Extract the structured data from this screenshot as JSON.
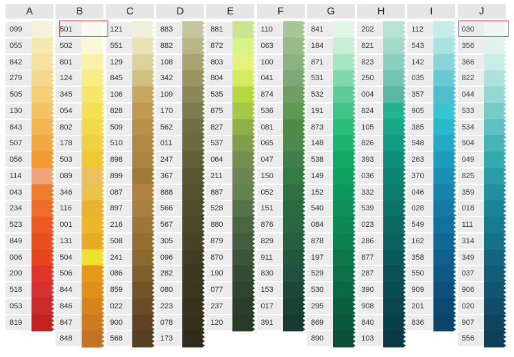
{
  "columns": [
    {
      "header": "A",
      "swatches": [
        {
          "code": "099",
          "color": "#f5f2dc"
        },
        {
          "code": "055",
          "color": "#f6eab0"
        },
        {
          "code": "842",
          "color": "#f6e1a0"
        },
        {
          "code": "279",
          "color": "#f5d88e"
        },
        {
          "code": "505",
          "color": "#f5cf78"
        },
        {
          "code": "130",
          "color": "#f4c264"
        },
        {
          "code": "843",
          "color": "#f3b451"
        },
        {
          "code": "507",
          "color": "#f2a842"
        },
        {
          "code": "056",
          "color": "#f19a30"
        },
        {
          "code": "114",
          "color": "#f0a47a"
        },
        {
          "code": "043",
          "color": "#ef7d2e"
        },
        {
          "code": "234",
          "color": "#ee6d28"
        },
        {
          "code": "523",
          "color": "#ec5c22"
        },
        {
          "code": "849",
          "color": "#e9501f"
        },
        {
          "code": "006",
          "color": "#e6451d"
        },
        {
          "code": "200",
          "color": "#e0362a"
        },
        {
          "code": "518",
          "color": "#d63030"
        },
        {
          "code": "053",
          "color": "#c92b2c"
        },
        {
          "code": "819",
          "color": "#c3231f"
        }
      ]
    },
    {
      "header": "B",
      "swatches": [
        {
          "code": "501",
          "color": "#fbfaf2"
        },
        {
          "code": "502",
          "color": "#fbf8d8"
        },
        {
          "code": "801",
          "color": "#faf2a8"
        },
        {
          "code": "124",
          "color": "#f8ec82"
        },
        {
          "code": "345",
          "color": "#f6e66c"
        },
        {
          "code": "054",
          "color": "#f4e052"
        },
        {
          "code": "802",
          "color": "#f2d94a"
        },
        {
          "code": "178",
          "color": "#f0d040"
        },
        {
          "code": "503",
          "color": "#efc832"
        },
        {
          "code": "089",
          "color": "#ecc05a"
        },
        {
          "code": "346",
          "color": "#ebc24a"
        },
        {
          "code": "116",
          "color": "#e9b330"
        },
        {
          "code": "001",
          "color": "#ebb82c"
        },
        {
          "code": "131",
          "color": "#e8ac22"
        },
        {
          "code": "504",
          "color": "#f0e030"
        },
        {
          "code": "506",
          "color": "#e59a16"
        },
        {
          "code": "844",
          "color": "#e08f18"
        },
        {
          "code": "846",
          "color": "#d8841e"
        },
        {
          "code": "847",
          "color": "#cf7a1f"
        },
        {
          "code": "848",
          "color": "#c47322"
        }
      ]
    },
    {
      "header": "C",
      "swatches": [
        {
          "code": "121",
          "color": "#f1efd9"
        },
        {
          "code": "551",
          "color": "#e8e2b6"
        },
        {
          "code": "129",
          "color": "#ddd29a"
        },
        {
          "code": "845",
          "color": "#d2c080"
        },
        {
          "code": "106",
          "color": "#c7a860"
        },
        {
          "code": "828",
          "color": "#c09a4e"
        },
        {
          "code": "509",
          "color": "#b89048"
        },
        {
          "code": "510",
          "color": "#b08a44"
        },
        {
          "code": "898",
          "color": "#aa8440"
        },
        {
          "code": "899",
          "color": "#a07a38"
        },
        {
          "code": "087",
          "color": "#b28240"
        },
        {
          "code": "897",
          "color": "#a88040"
        },
        {
          "code": "216",
          "color": "#9c7638"
        },
        {
          "code": "508",
          "color": "#947030"
        },
        {
          "code": "241",
          "color": "#8c6a2e"
        },
        {
          "code": "086",
          "color": "#7e5e2a"
        },
        {
          "code": "859",
          "color": "#725428"
        },
        {
          "code": "022",
          "color": "#6a4c26"
        },
        {
          "code": "900",
          "color": "#5e4424"
        },
        {
          "code": "568",
          "color": "#554022"
        }
      ]
    },
    {
      "header": "D",
      "swatches": [
        {
          "code": "883",
          "color": "#c7c59e"
        },
        {
          "code": "882",
          "color": "#b9b788"
        },
        {
          "code": "108",
          "color": "#a8a471"
        },
        {
          "code": "342",
          "color": "#9a9460"
        },
        {
          "code": "109",
          "color": "#8a8758"
        },
        {
          "code": "170",
          "color": "#7c7a4e"
        },
        {
          "code": "562",
          "color": "#706c44"
        },
        {
          "code": "011",
          "color": "#6a6a3e"
        },
        {
          "code": "247",
          "color": "#625e38"
        },
        {
          "code": "367",
          "color": "#585632"
        },
        {
          "code": "888",
          "color": "#54522e"
        },
        {
          "code": "566",
          "color": "#4e4c2c"
        },
        {
          "code": "567",
          "color": "#4a4828"
        },
        {
          "code": "305",
          "color": "#464226"
        },
        {
          "code": "096",
          "color": "#423c24"
        },
        {
          "code": "282",
          "color": "#3e3822"
        },
        {
          "code": "080",
          "color": "#3c3620"
        },
        {
          "code": "223",
          "color": "#38321e"
        },
        {
          "code": "078",
          "color": "#34301c"
        },
        {
          "code": "173",
          "color": "#302c1c"
        }
      ]
    },
    {
      "header": "E",
      "swatches": [
        {
          "code": "881",
          "color": "#c7e68e"
        },
        {
          "code": "872",
          "color": "#d6f48a"
        },
        {
          "code": "803",
          "color": "#e6f27a"
        },
        {
          "code": "804",
          "color": "#d5ec60"
        },
        {
          "code": "535",
          "color": "#b5d840"
        },
        {
          "code": "875",
          "color": "#a6c844"
        },
        {
          "code": "827",
          "color": "#8fb048"
        },
        {
          "code": "537",
          "color": "#809f4a"
        },
        {
          "code": "064",
          "color": "#768e50"
        },
        {
          "code": "211",
          "color": "#6c8556"
        },
        {
          "code": "887",
          "color": "#64824e"
        },
        {
          "code": "528",
          "color": "#56744a"
        },
        {
          "code": "880",
          "color": "#4a6744"
        },
        {
          "code": "879",
          "color": "#435e3e"
        },
        {
          "code": "870",
          "color": "#3a5538"
        },
        {
          "code": "190",
          "color": "#334c32"
        },
        {
          "code": "077",
          "color": "#2e442e"
        },
        {
          "code": "237",
          "color": "#2a3e2a"
        },
        {
          "code": "120",
          "color": "#283a28"
        }
      ]
    },
    {
      "header": "F",
      "swatches": [
        {
          "code": "110",
          "color": "#a7c69a"
        },
        {
          "code": "063",
          "color": "#98bb8a"
        },
        {
          "code": "100",
          "color": "#8cb282"
        },
        {
          "code": "041",
          "color": "#7fa878"
        },
        {
          "code": "874",
          "color": "#6f9e62"
        },
        {
          "code": "536",
          "color": "#609a52"
        },
        {
          "code": "081",
          "color": "#4f8c46"
        },
        {
          "code": "065",
          "color": "#4a8a4c"
        },
        {
          "code": "047",
          "color": "#3f7e4a"
        },
        {
          "code": "150",
          "color": "#357c44"
        },
        {
          "code": "052",
          "color": "#2e7040"
        },
        {
          "code": "151",
          "color": "#2a6a3e"
        },
        {
          "code": "876",
          "color": "#2a6640"
        },
        {
          "code": "829",
          "color": "#276040"
        },
        {
          "code": "911",
          "color": "#22583a"
        },
        {
          "code": "830",
          "color": "#1f5040"
        },
        {
          "code": "153",
          "color": "#1c4838"
        },
        {
          "code": "017",
          "color": "#1a4234"
        },
        {
          "code": "391",
          "color": "#183a30"
        }
      ]
    },
    {
      "header": "G",
      "swatches": [
        {
          "code": "841",
          "color": "#e0f4e8"
        },
        {
          "code": "184",
          "color": "#c8eed8"
        },
        {
          "code": "871",
          "color": "#a6e4c4"
        },
        {
          "code": "531",
          "color": "#82d8ae"
        },
        {
          "code": "532",
          "color": "#5ecc9a"
        },
        {
          "code": "191",
          "color": "#40c488"
        },
        {
          "code": "873",
          "color": "#2cbc7c"
        },
        {
          "code": "148",
          "color": "#1cb46e"
        },
        {
          "code": "538",
          "color": "#14a866"
        },
        {
          "code": "149",
          "color": "#10a060"
        },
        {
          "code": "152",
          "color": "#0e985c"
        },
        {
          "code": "540",
          "color": "#0e9058"
        },
        {
          "code": "084",
          "color": "#0c8850"
        },
        {
          "code": "878",
          "color": "#0c804e"
        },
        {
          "code": "197",
          "color": "#0c784c"
        },
        {
          "code": "529",
          "color": "#0c7048"
        },
        {
          "code": "530",
          "color": "#0b6844"
        },
        {
          "code": "295",
          "color": "#0a6040"
        },
        {
          "code": "869",
          "color": "#0a583c"
        },
        {
          "code": "890",
          "color": "#0a5038"
        }
      ]
    },
    {
      "header": "H",
      "swatches": [
        {
          "code": "202",
          "color": "#b8e2d6"
        },
        {
          "code": "821",
          "color": "#a2dacc"
        },
        {
          "code": "823",
          "color": "#8ad0c0"
        },
        {
          "code": "250",
          "color": "#74c4b2"
        },
        {
          "code": "004",
          "color": "#5cb8a4"
        },
        {
          "code": "824",
          "color": "#22b492"
        },
        {
          "code": "105",
          "color": "#16a888"
        },
        {
          "code": "826",
          "color": "#109c80"
        },
        {
          "code": "393",
          "color": "#0e9078"
        },
        {
          "code": "036",
          "color": "#0c8470"
        },
        {
          "code": "332",
          "color": "#0c7c6c"
        },
        {
          "code": "539",
          "color": "#0a7266"
        },
        {
          "code": "023",
          "color": "#0a6a62"
        },
        {
          "code": "286",
          "color": "#0a6260"
        },
        {
          "code": "877",
          "color": "#0a5a5c"
        },
        {
          "code": "287",
          "color": "#0a5258"
        },
        {
          "code": "390",
          "color": "#0a4c54"
        },
        {
          "code": "908",
          "color": "#0a4650"
        },
        {
          "code": "840",
          "color": "#0a404c"
        },
        {
          "code": "103",
          "color": "#0a3a48"
        }
      ]
    },
    {
      "header": "I",
      "swatches": [
        {
          "code": "112",
          "color": "#c6ebe8"
        },
        {
          "code": "543",
          "color": "#a8e2e2"
        },
        {
          "code": "142",
          "color": "#88d6da"
        },
        {
          "code": "035",
          "color": "#6acad2"
        },
        {
          "code": "357",
          "color": "#50bece"
        },
        {
          "code": "905",
          "color": "#38c4d2"
        },
        {
          "code": "385",
          "color": "#2cb8cc"
        },
        {
          "code": "548",
          "color": "#24aac4"
        },
        {
          "code": "263",
          "color": "#1e9cbc"
        },
        {
          "code": "370",
          "color": "#1a90b4"
        },
        {
          "code": "046",
          "color": "#1884ac"
        },
        {
          "code": "028",
          "color": "#167aa4"
        },
        {
          "code": "549",
          "color": "#14709c"
        },
        {
          "code": "162",
          "color": "#126894"
        },
        {
          "code": "358",
          "color": "#10608c"
        },
        {
          "code": "550",
          "color": "#0e5884"
        },
        {
          "code": "909",
          "color": "#0e507c"
        },
        {
          "code": "201",
          "color": "#0c4a74"
        },
        {
          "code": "836",
          "color": "#0c446c"
        }
      ]
    },
    {
      "header": "J",
      "swatches": [
        {
          "code": "030",
          "color": "#f0f6f4"
        },
        {
          "code": "356",
          "color": "#e0f2ee"
        },
        {
          "code": "366",
          "color": "#c8ece6"
        },
        {
          "code": "822",
          "color": "#aee2dc"
        },
        {
          "code": "044",
          "color": "#94d8d2"
        },
        {
          "code": "533",
          "color": "#78ccc8"
        },
        {
          "code": "534",
          "color": "#5ec0c0"
        },
        {
          "code": "904",
          "color": "#48b4b8"
        },
        {
          "code": "049",
          "color": "#36a8b0"
        },
        {
          "code": "825",
          "color": "#2a9ca8"
        },
        {
          "code": "359",
          "color": "#2290a0"
        },
        {
          "code": "018",
          "color": "#1c8498"
        },
        {
          "code": "111",
          "color": "#187a90"
        },
        {
          "code": "314",
          "color": "#167088"
        },
        {
          "code": "349",
          "color": "#146680"
        },
        {
          "code": "037",
          "color": "#125e78"
        },
        {
          "code": "906",
          "color": "#105670"
        },
        {
          "code": "020",
          "color": "#0e4e68"
        },
        {
          "code": "907",
          "color": "#0e4660"
        },
        {
          "code": "556",
          "color": "#0c4058"
        }
      ]
    }
  ]
}
